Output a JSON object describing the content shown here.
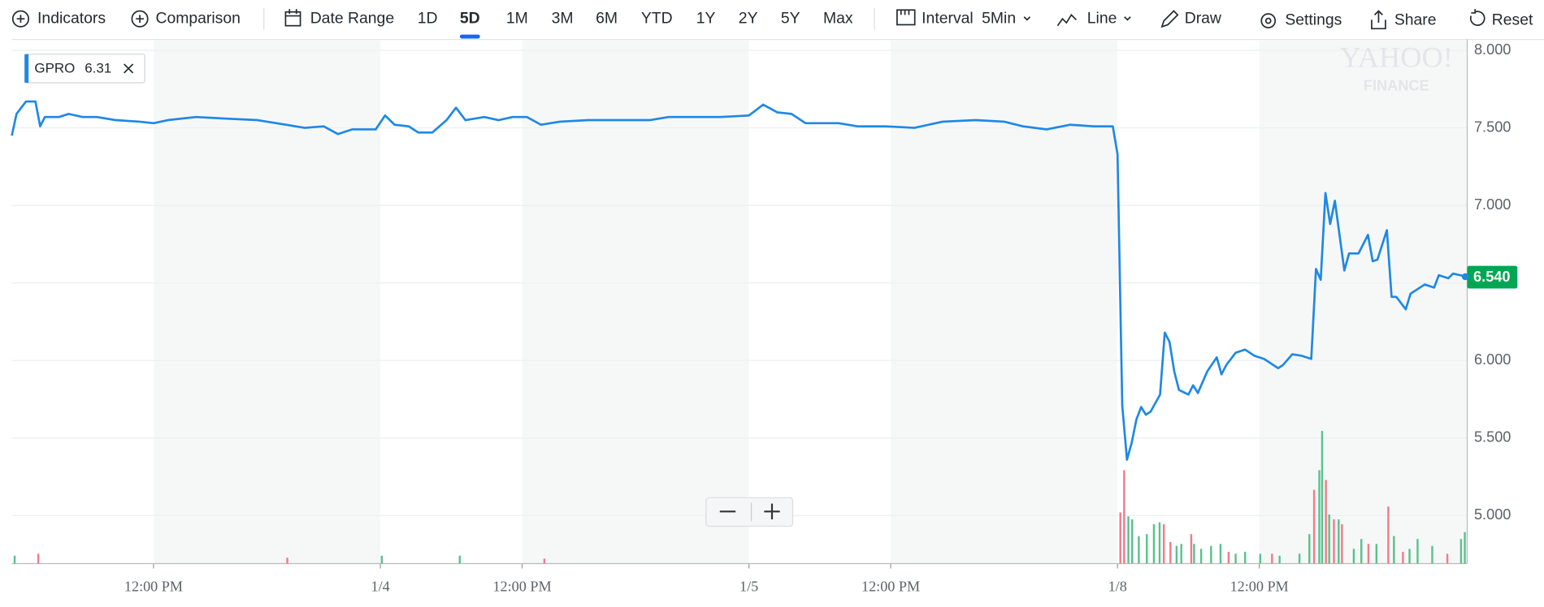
{
  "toolbar": {
    "indicators": "Indicators",
    "comparison": "Comparison",
    "date_range": "Date Range",
    "ranges": [
      "1D",
      "5D",
      "1M",
      "3M",
      "6M",
      "YTD",
      "1Y",
      "2Y",
      "5Y",
      "Max"
    ],
    "active_range": 1,
    "interval_label": "Interval",
    "interval": "5Min",
    "chart_style": "Line",
    "draw": "Draw",
    "settings": "Settings",
    "share": "Share",
    "reset": "Reset"
  },
  "watermark": [
    "YAHOO!",
    "FINANCE"
  ],
  "chart_data": {
    "type": "line",
    "legend_value": 6.31,
    "last_price": {
      "value": 6.54,
      "label": "6.540"
    },
    "xlim": [
      0,
      308
    ],
    "xticks": [
      {
        "value": 30,
        "label": "12:00 PM"
      },
      {
        "value": 78,
        "label": "1/4"
      },
      {
        "value": 108,
        "label": "12:00 PM"
      },
      {
        "value": 156,
        "label": "1/5"
      },
      {
        "value": 186,
        "label": "12:00 PM"
      },
      {
        "value": 234,
        "label": "1/8"
      },
      {
        "value": 264,
        "label": "12:00 PM"
      }
    ],
    "ylim": [
      4.69,
      8.07
    ],
    "yticks": [
      {
        "value": 5,
        "label": "5.000"
      },
      {
        "value": 5.5,
        "label": "5.500"
      },
      {
        "value": 6,
        "label": "6.000"
      },
      {
        "value": 6.5,
        "label": "6.500"
      },
      {
        "value": 7,
        "label": "7.000"
      },
      {
        "value": 7.5,
        "label": "7.500"
      },
      {
        "value": 8,
        "label": "8.000"
      }
    ],
    "grid": true,
    "series": [
      {
        "name": "GPRO",
        "color": "#1e88e5",
        "x": [
          0,
          1,
          3,
          5,
          6,
          7,
          10,
          12,
          15,
          18,
          22,
          27,
          30,
          33,
          39,
          45,
          52,
          58,
          62,
          66,
          69,
          72,
          77,
          79,
          81,
          84,
          86,
          89,
          92,
          94,
          96,
          100,
          103,
          106,
          109,
          112,
          116,
          122,
          129,
          135,
          139,
          143,
          150,
          156,
          159,
          162,
          165,
          168,
          175,
          179,
          185,
          191,
          197,
          204,
          210,
          214,
          219,
          224,
          229,
          233,
          234,
          235,
          236,
          237,
          238,
          239,
          240,
          241,
          243,
          244,
          245,
          246,
          247,
          249,
          250,
          251,
          253,
          255,
          256,
          257,
          259,
          261,
          263,
          265,
          268,
          269,
          271,
          273,
          275,
          276,
          277,
          278,
          279,
          280,
          282,
          283,
          285,
          287,
          288,
          289,
          291,
          292,
          293,
          295,
          296,
          299,
          301,
          302,
          304,
          305,
          308
        ],
        "values": [
          7.45,
          7.59,
          7.67,
          7.67,
          7.51,
          7.57,
          7.57,
          7.59,
          7.57,
          7.57,
          7.55,
          7.54,
          7.53,
          7.55,
          7.57,
          7.56,
          7.55,
          7.52,
          7.5,
          7.51,
          7.46,
          7.49,
          7.49,
          7.58,
          7.52,
          7.51,
          7.47,
          7.47,
          7.55,
          7.63,
          7.55,
          7.57,
          7.55,
          7.57,
          7.57,
          7.52,
          7.54,
          7.55,
          7.55,
          7.55,
          7.57,
          7.57,
          7.57,
          7.58,
          7.65,
          7.6,
          7.59,
          7.53,
          7.53,
          7.51,
          7.51,
          7.5,
          7.54,
          7.55,
          7.54,
          7.51,
          7.49,
          7.52,
          7.51,
          7.51,
          7.33,
          5.71,
          5.36,
          5.47,
          5.62,
          5.7,
          5.65,
          5.67,
          5.78,
          6.18,
          6.12,
          5.93,
          5.81,
          5.78,
          5.84,
          5.79,
          5.93,
          6.02,
          5.91,
          5.97,
          6.05,
          6.07,
          6.03,
          6.01,
          5.95,
          5.97,
          6.04,
          6.03,
          6.01,
          6.59,
          6.52,
          7.08,
          6.88,
          7.03,
          6.58,
          6.69,
          6.69,
          6.81,
          6.64,
          6.65,
          6.84,
          6.41,
          6.41,
          6.33,
          6.43,
          6.49,
          6.47,
          6.55,
          6.53,
          6.56,
          6.54
        ]
      }
    ],
    "volume": {
      "ylim": [
        0,
        533
      ],
      "series": [
        {
          "color": "#f27b8a",
          "x": [
            5.6,
            58.3,
            112.7,
            234.6,
            235.4,
            243.8,
            245.2,
            249.6,
            257.5,
            266.7,
            275.6,
            278.1,
            279.8,
            281.5,
            287.1,
            291.3,
            294.4,
            303.8
          ],
          "values": [
            10,
            6,
            5,
            52,
            95,
            40,
            22,
            30,
            12,
            10,
            75,
            85,
            45,
            40,
            20,
            58,
            12,
            10
          ]
        },
        {
          "color": "#59c28d",
          "x": [
            0.6,
            78.3,
            94.8,
            236.3,
            237.1,
            238.5,
            240.2,
            241.7,
            242.9,
            246.5,
            247.5,
            250.2,
            251.7,
            253.8,
            255.8,
            259,
            261,
            264.2,
            268.3,
            272.5,
            274.6,
            276.7,
            277.3,
            278.8,
            280.8,
            284,
            285.6,
            288.8,
            292.5,
            295.8,
            297.5,
            300.6,
            306.7,
            307.5
          ],
          "values": [
            8,
            8,
            8,
            48,
            45,
            28,
            30,
            40,
            42,
            18,
            20,
            20,
            15,
            18,
            20,
            10,
            12,
            10,
            8,
            10,
            30,
            95,
            135,
            50,
            45,
            15,
            25,
            20,
            28,
            15,
            25,
            18,
            25,
            32
          ]
        }
      ]
    }
  }
}
